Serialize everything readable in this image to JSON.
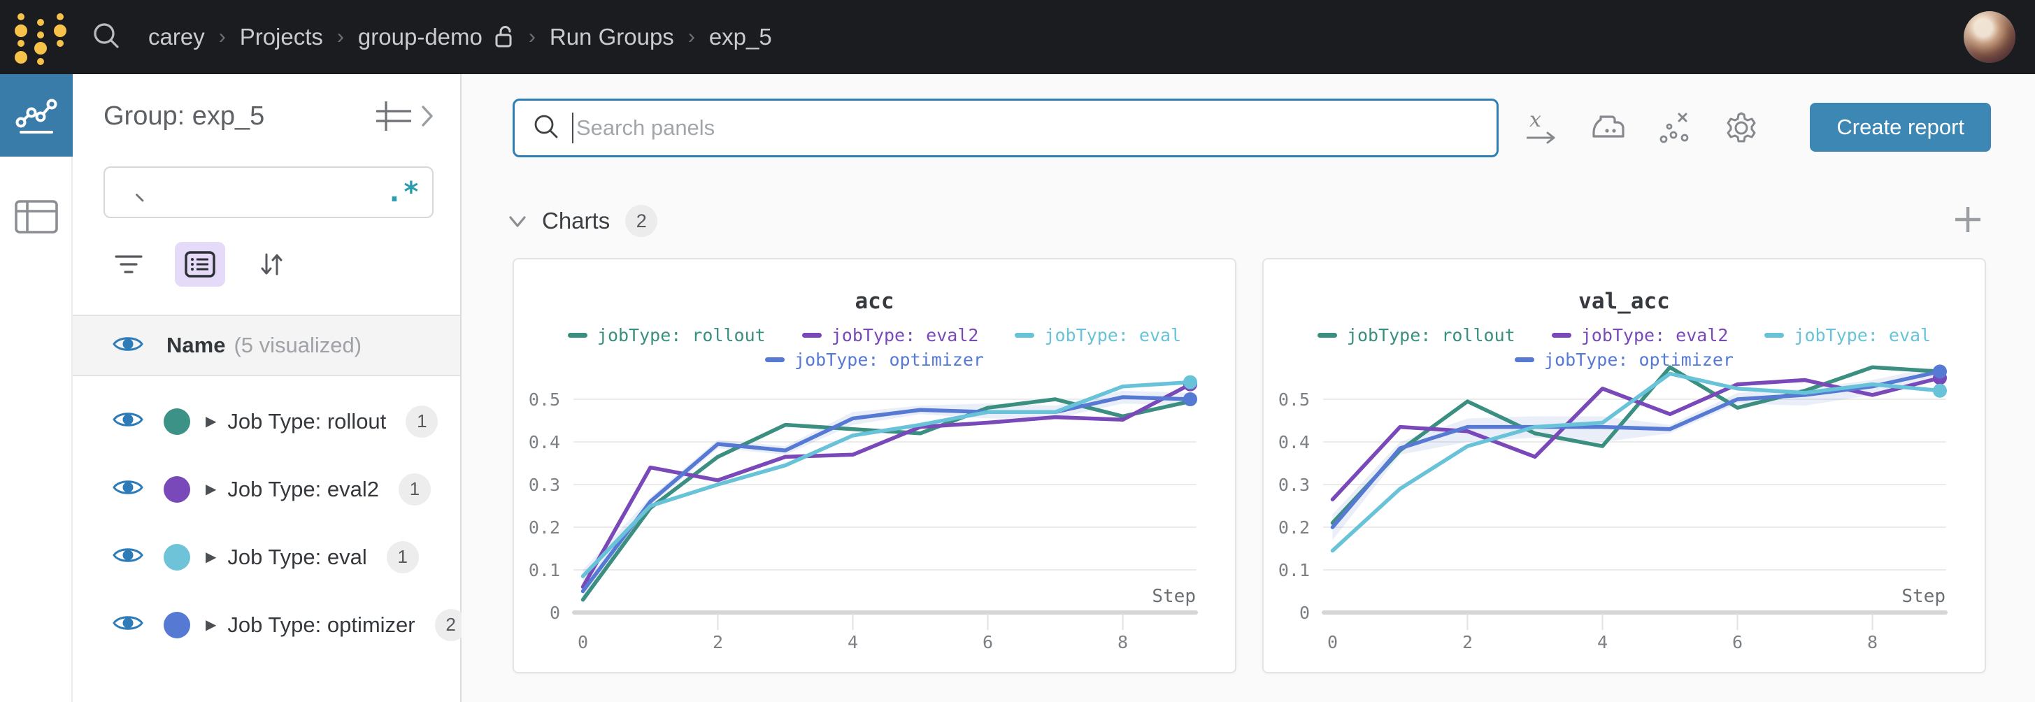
{
  "navbar": {
    "breadcrumb": [
      {
        "label": "carey"
      },
      {
        "label": "Projects"
      },
      {
        "label": "group-demo",
        "lock": true
      },
      {
        "label": "Run Groups"
      },
      {
        "label": "exp_5"
      }
    ]
  },
  "left_rail": {
    "items": [
      {
        "name": "workspace",
        "icon": "line-chart-icon",
        "active": true
      },
      {
        "name": "runs-table",
        "icon": "table-icon",
        "active": false
      }
    ]
  },
  "sidebar": {
    "title": "Group: exp_5",
    "search_value": "",
    "regex_toggle": ".*",
    "name_row": {
      "label": "Name",
      "suffix": "(5 visualized)"
    },
    "groups": [
      {
        "label": "Job Type: rollout",
        "count": "1",
        "color": "#3d9287"
      },
      {
        "label": "Job Type: eval2",
        "count": "1",
        "color": "#7a49b9"
      },
      {
        "label": "Job Type: eval",
        "count": "1",
        "color": "#6ec3d8"
      },
      {
        "label": "Job Type: optimizer",
        "count": "2",
        "color": "#5679d4"
      }
    ]
  },
  "toolbar": {
    "search_placeholder": "Search panels",
    "icons": [
      "x-axis-icon",
      "smoothing-iron-icon",
      "outliers-icon",
      "settings-gear-icon"
    ],
    "create_report_label": "Create report"
  },
  "charts_section": {
    "label": "Charts",
    "count": "2"
  },
  "chart_data": [
    {
      "type": "line",
      "title": "acc",
      "xlabel": "Step",
      "x": [
        0,
        1,
        2,
        3,
        4,
        5,
        6,
        7,
        8,
        9
      ],
      "xticks": [
        0,
        2,
        4,
        6,
        8
      ],
      "yticks": [
        0,
        0.1,
        0.2,
        0.3,
        0.4,
        0.5
      ],
      "ylim": [
        0,
        0.58
      ],
      "grid": true,
      "legend_position": "top",
      "series": [
        {
          "name": "jobType: rollout",
          "color": "#3a8f80",
          "end_dot": false,
          "values": [
            0.03,
            0.245,
            0.365,
            0.44,
            0.43,
            0.42,
            0.48,
            0.5,
            0.46,
            0.495
          ]
        },
        {
          "name": "jobType: eval2",
          "color": "#7a49b9",
          "end_dot": true,
          "values": [
            0.06,
            0.34,
            0.31,
            0.365,
            0.37,
            0.435,
            0.445,
            0.458,
            0.452,
            0.535
          ]
        },
        {
          "name": "jobType: eval",
          "color": "#68c2d8",
          "end_dot": true,
          "values": [
            0.085,
            0.25,
            0.3,
            0.345,
            0.415,
            0.44,
            0.47,
            0.47,
            0.53,
            0.54
          ]
        },
        {
          "name": "jobType: optimizer",
          "color": "#5679d4",
          "end_dot": true,
          "values": [
            0.05,
            0.26,
            0.395,
            0.38,
            0.455,
            0.475,
            0.47,
            0.47,
            0.505,
            0.5
          ],
          "band": {
            "lower": [
              0.02,
              0.25,
              0.385,
              0.37,
              0.44,
              0.465,
              0.455,
              0.455,
              0.49,
              0.485
            ],
            "upper": [
              0.1,
              0.27,
              0.405,
              0.39,
              0.47,
              0.485,
              0.49,
              0.485,
              0.52,
              0.515
            ]
          }
        }
      ]
    },
    {
      "type": "line",
      "title": "val_acc",
      "xlabel": "Step",
      "x": [
        0,
        1,
        2,
        3,
        4,
        5,
        6,
        7,
        8,
        9
      ],
      "xticks": [
        0,
        2,
        4,
        6,
        8
      ],
      "yticks": [
        0,
        0.1,
        0.2,
        0.3,
        0.4,
        0.5
      ],
      "ylim": [
        0,
        0.63
      ],
      "grid": true,
      "legend_position": "top",
      "series": [
        {
          "name": "jobType: rollout",
          "color": "#3a8f80",
          "end_dot": false,
          "values": [
            0.21,
            0.38,
            0.495,
            0.42,
            0.39,
            0.575,
            0.48,
            0.52,
            0.575,
            0.565
          ]
        },
        {
          "name": "jobType: eval2",
          "color": "#7a49b9",
          "end_dot": true,
          "values": [
            0.265,
            0.435,
            0.425,
            0.365,
            0.525,
            0.465,
            0.535,
            0.545,
            0.51,
            0.55
          ]
        },
        {
          "name": "jobType: eval",
          "color": "#68c2d8",
          "end_dot": true,
          "values": [
            0.145,
            0.29,
            0.39,
            0.435,
            0.445,
            0.56,
            0.525,
            0.515,
            0.535,
            0.52
          ]
        },
        {
          "name": "jobType: optimizer",
          "color": "#5679d4",
          "end_dot": true,
          "values": [
            0.2,
            0.385,
            0.435,
            0.435,
            0.435,
            0.43,
            0.5,
            0.51,
            0.53,
            0.565
          ],
          "band": {
            "lower": [
              0.17,
              0.37,
              0.4,
              0.41,
              0.4,
              0.42,
              0.49,
              0.485,
              0.51,
              0.55
            ],
            "upper": [
              0.23,
              0.4,
              0.455,
              0.46,
              0.46,
              0.44,
              0.515,
              0.525,
              0.545,
              0.578
            ]
          }
        }
      ]
    }
  ],
  "colors": {
    "navbar_bg": "#1a1c20",
    "accent_blue": "#2e7fb6",
    "button_blue": "#3d87b4",
    "rail_active": "#3a7ca9",
    "logo_yellow": "#f6c24a",
    "band_fill": "rgba(86,121,212,0.13)"
  }
}
